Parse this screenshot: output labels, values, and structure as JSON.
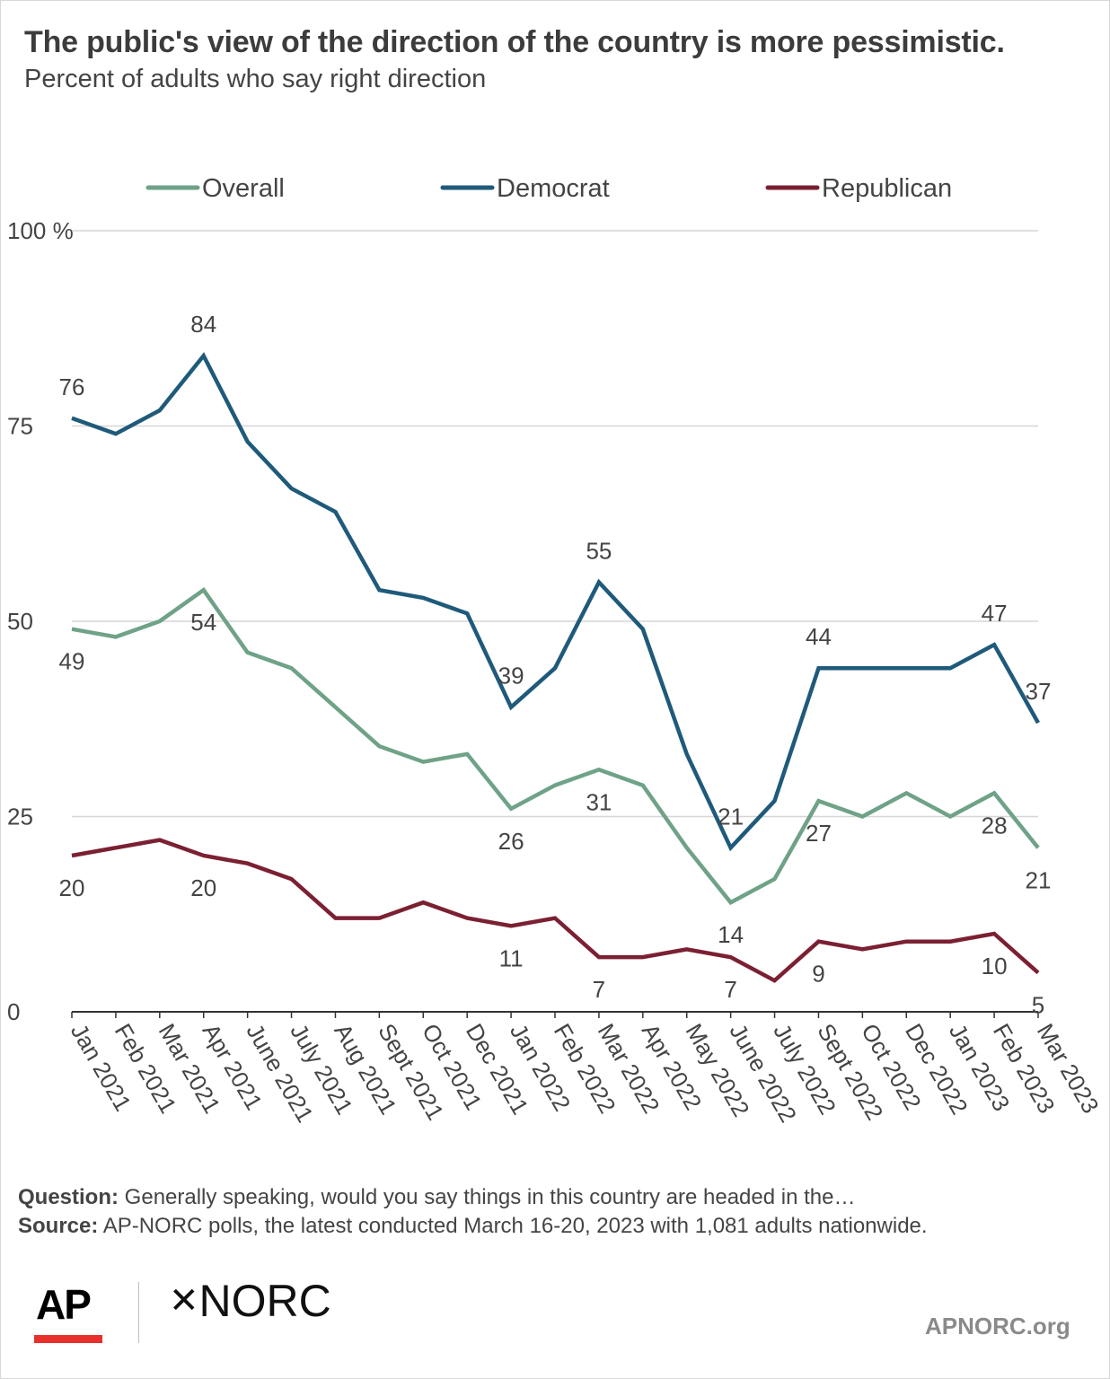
{
  "title": "The public's view of the direction of the country is more pessimistic.",
  "subtitle": "Percent of adults who say right direction",
  "notes": {
    "question_label": "Question:",
    "question_text": "Generally speaking, would you say things in this country are headed in the…",
    "source_label": "Source:",
    "source_text": "AP-NORC polls, the latest conducted March 16-20, 2023 with 1,081 adults nationwide."
  },
  "logos": {
    "ap": "AP",
    "norc": "NORC",
    "norc_symbol": "✕"
  },
  "site": "APNORC.org",
  "chart_data": {
    "type": "line",
    "categories": [
      "Jan 2021",
      "Feb 2021",
      "Mar 2021",
      "Apr 2021",
      "June 2021",
      "July 2021",
      "Aug 2021",
      "Sept 2021",
      "Oct 2021",
      "Dec 2021",
      "Jan 2022",
      "Feb 2022",
      "Mar 2022",
      "Apr 2022",
      "May 2022",
      "June 2022",
      "July 2022",
      "Sept 2022",
      "Oct 2022",
      "Dec 2022",
      "Jan 2023",
      "Feb 2023",
      "Mar 2023"
    ],
    "ylim": [
      0,
      100
    ],
    "yticks": [
      0,
      25,
      50,
      75,
      100
    ],
    "ytick_labels": [
      "0",
      "25",
      "50",
      "75",
      "100 %"
    ],
    "grid": true,
    "legend_position": "top",
    "series": [
      {
        "name": "Overall",
        "color": "#6fa287",
        "values": [
          49,
          48,
          50,
          54,
          46,
          44,
          39,
          34,
          32,
          33,
          26,
          29,
          31,
          29,
          21,
          14,
          17,
          27,
          25,
          28,
          25,
          28,
          21
        ],
        "labels": [
          {
            "index": 0,
            "text": "49",
            "pos": "below"
          },
          {
            "index": 3,
            "text": "54",
            "pos": "below"
          },
          {
            "index": 10,
            "text": "26",
            "pos": "below"
          },
          {
            "index": 12,
            "text": "31",
            "pos": "below"
          },
          {
            "index": 15,
            "text": "14",
            "pos": "below"
          },
          {
            "index": 17,
            "text": "27",
            "pos": "below"
          },
          {
            "index": 21,
            "text": "28",
            "pos": "below"
          },
          {
            "index": 22,
            "text": "21",
            "pos": "below"
          }
        ]
      },
      {
        "name": "Democrat",
        "color": "#1f5a7a",
        "values": [
          76,
          74,
          77,
          84,
          73,
          67,
          64,
          54,
          53,
          51,
          39,
          44,
          55,
          49,
          33,
          21,
          27,
          44,
          44,
          44,
          44,
          47,
          37
        ],
        "labels": [
          {
            "index": 0,
            "text": "76",
            "pos": "above"
          },
          {
            "index": 3,
            "text": "84",
            "pos": "above"
          },
          {
            "index": 10,
            "text": "39",
            "pos": "above"
          },
          {
            "index": 12,
            "text": "55",
            "pos": "above"
          },
          {
            "index": 15,
            "text": "21",
            "pos": "above"
          },
          {
            "index": 17,
            "text": "44",
            "pos": "above"
          },
          {
            "index": 21,
            "text": "47",
            "pos": "above"
          },
          {
            "index": 22,
            "text": "37",
            "pos": "above"
          }
        ]
      },
      {
        "name": "Republican",
        "color": "#7b2032",
        "values": [
          20,
          21,
          22,
          20,
          19,
          17,
          12,
          12,
          14,
          12,
          11,
          12,
          7,
          7,
          8,
          7,
          4,
          9,
          8,
          9,
          9,
          10,
          5
        ],
        "labels": [
          {
            "index": 0,
            "text": "20",
            "pos": "below"
          },
          {
            "index": 3,
            "text": "20",
            "pos": "below"
          },
          {
            "index": 10,
            "text": "11",
            "pos": "below"
          },
          {
            "index": 12,
            "text": "7",
            "pos": "below"
          },
          {
            "index": 15,
            "text": "7",
            "pos": "below"
          },
          {
            "index": 17,
            "text": "9",
            "pos": "below"
          },
          {
            "index": 21,
            "text": "10",
            "pos": "below"
          },
          {
            "index": 22,
            "text": "5",
            "pos": "below"
          }
        ]
      }
    ]
  }
}
